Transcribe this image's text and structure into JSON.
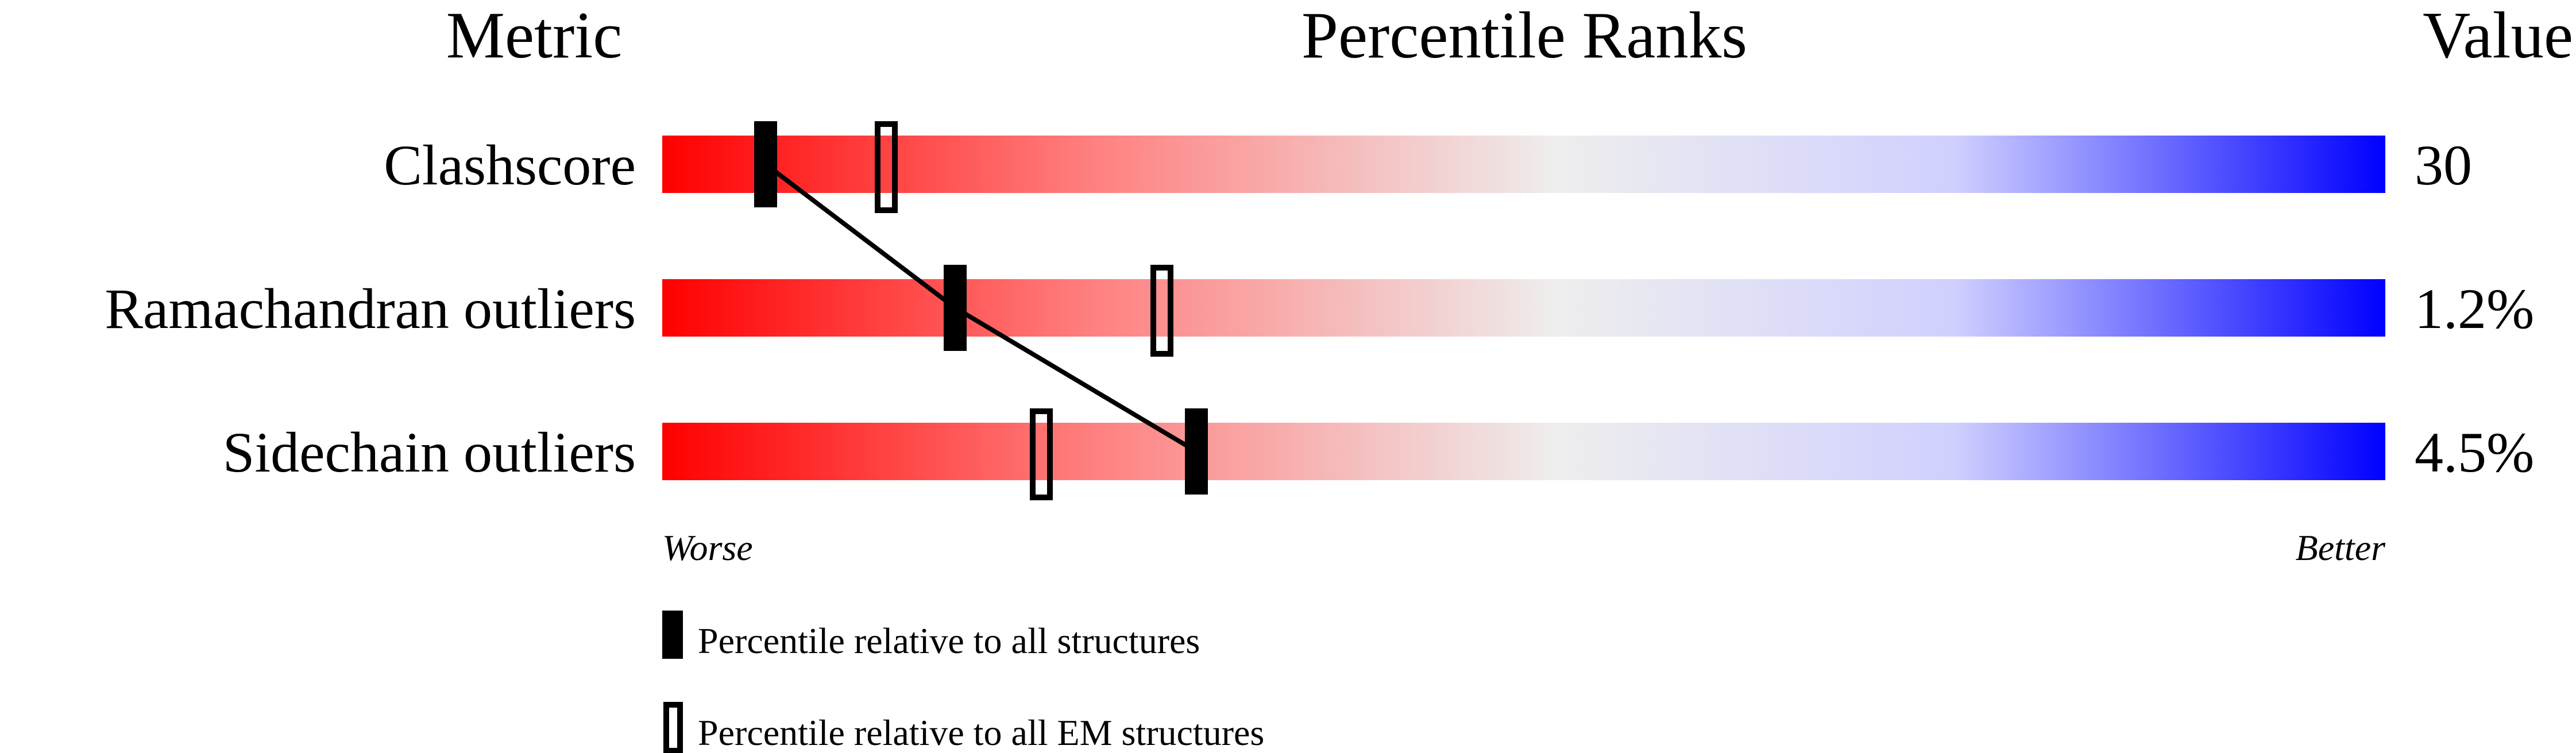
{
  "chart_data": {
    "type": "percentile-slider",
    "headers": {
      "metric": "Metric",
      "ranks": "Percentile Ranks",
      "value": "Value"
    },
    "xlim": [
      0,
      100
    ],
    "axis_left_label": "Worse",
    "axis_right_label": "Better",
    "colors": {
      "worse": "#ff0000",
      "middle": "#eeeeee",
      "better": "#0000ff",
      "marker": "#000000"
    },
    "metrics": [
      {
        "name": "Clashscore",
        "value": "30",
        "percentile_all": 6,
        "percentile_em": 13
      },
      {
        "name": "Ramachandran outliers",
        "value": "1.2%",
        "percentile_all": 17,
        "percentile_em": 29
      },
      {
        "name": "Sidechain outliers",
        "value": "4.5%",
        "percentile_all": 31,
        "percentile_em": 22
      }
    ],
    "legend": {
      "all": "Percentile relative to all structures",
      "em": "Percentile relative to all EM structures"
    }
  }
}
